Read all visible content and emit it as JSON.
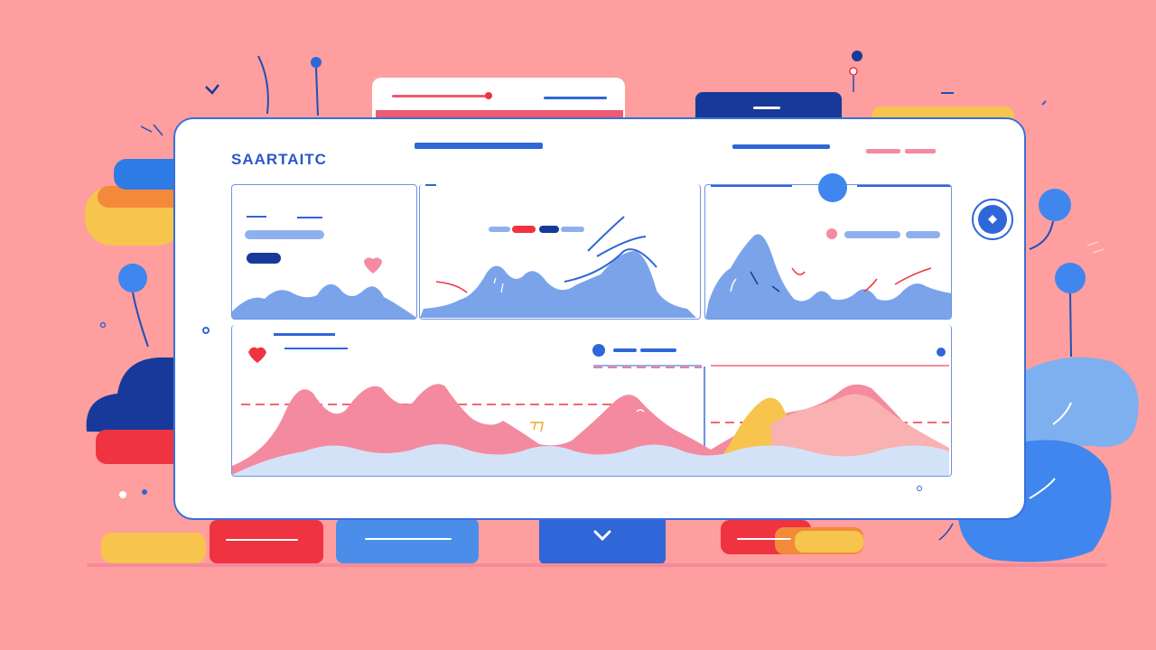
{
  "dashboard": {
    "title": "SAARTAITC"
  },
  "icons": {
    "nav_button": "chevron-right-icon",
    "bottom_button": "chevron-down-icon",
    "heart": "heart-icon"
  },
  "colors": {
    "background": "#ff9e9e",
    "accent_blue": "#2d56c9",
    "area_blue": "#7aa3ea",
    "area_pink": "#f48aa0",
    "area_yellow": "#f7c44d",
    "accent_red": "#ef3340"
  }
}
